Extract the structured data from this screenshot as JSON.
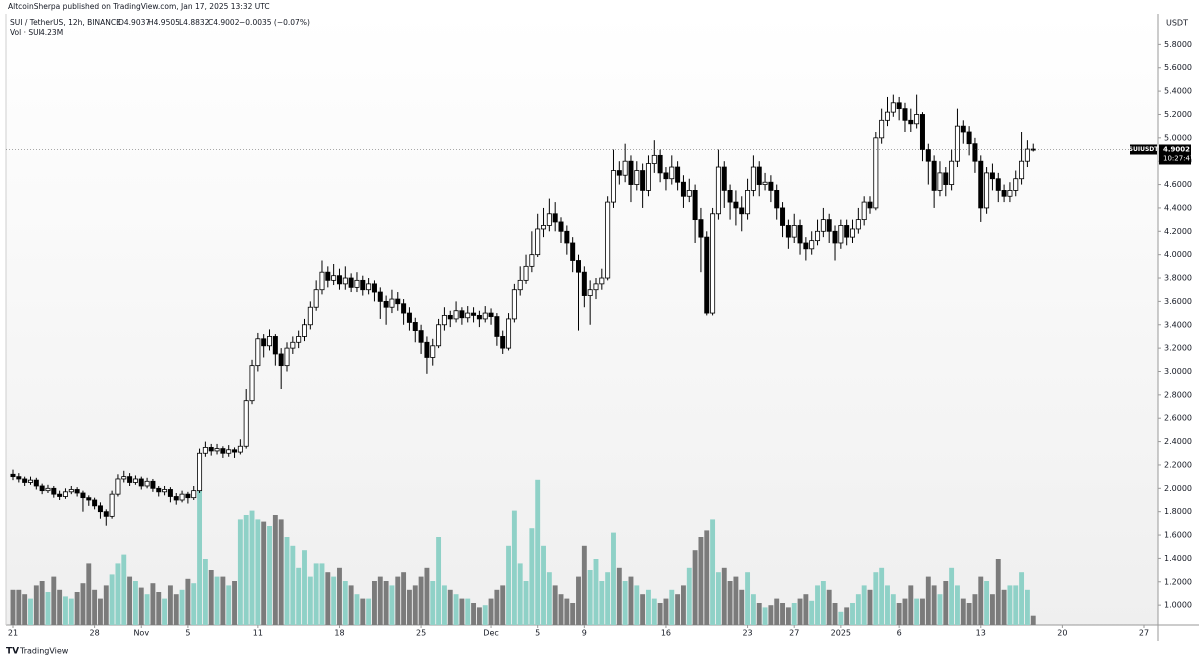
{
  "header": {
    "publisher": "AltcoinSherpa published on TradingView.com, Jan 17, 2025 13:32 UTC",
    "symbol": "SUI / TetherUS, 12h, BINANCE",
    "open": "O4.9037",
    "high": "H4.9505",
    "low": "L4.8832",
    "close": "C4.9002",
    "change": "−0.0035 (−0.07%)",
    "volume_name": "Vol · SUI",
    "volume_value": "4.23M"
  },
  "chart_data": {
    "type": "candlestick",
    "currency": "USDT",
    "xlim": [
      -1.2,
      196.4
    ],
    "xticks": [
      {
        "value": 0,
        "label": "21"
      },
      {
        "value": 14,
        "label": "28"
      },
      {
        "value": 22,
        "label": "Nov"
      },
      {
        "value": 30,
        "label": "5"
      },
      {
        "value": 42,
        "label": "11"
      },
      {
        "value": 56,
        "label": "18"
      },
      {
        "value": 70,
        "label": "25"
      },
      {
        "value": 82,
        "label": "Dec"
      },
      {
        "value": 90,
        "label": "5"
      },
      {
        "value": 98,
        "label": "9"
      },
      {
        "value": 112,
        "label": "16"
      },
      {
        "value": 126,
        "label": "23"
      },
      {
        "value": 134,
        "label": "27"
      },
      {
        "value": 142,
        "label": "2025"
      },
      {
        "value": 152,
        "label": "6"
      },
      {
        "value": 166,
        "label": "13"
      },
      {
        "value": 180,
        "label": "20"
      },
      {
        "value": 194,
        "label": "27"
      }
    ],
    "ylim": [
      0.83,
      6.06
    ],
    "yticks": [
      {
        "value": 1.0,
        "label": "1.0000"
      },
      {
        "value": 1.2,
        "label": "1.2000"
      },
      {
        "value": 1.4,
        "label": "1.4000"
      },
      {
        "value": 1.6,
        "label": "1.6000"
      },
      {
        "value": 1.8,
        "label": "1.8000"
      },
      {
        "value": 2.0,
        "label": "2.0000"
      },
      {
        "value": 2.2,
        "label": "2.2000"
      },
      {
        "value": 2.4,
        "label": "2.4000"
      },
      {
        "value": 2.6,
        "label": "2.6000"
      },
      {
        "value": 2.8,
        "label": "2.8000"
      },
      {
        "value": 3.0,
        "label": "3.0000"
      },
      {
        "value": 3.2,
        "label": "3.2000"
      },
      {
        "value": 3.4,
        "label": "3.4000"
      },
      {
        "value": 3.6,
        "label": "3.6000"
      },
      {
        "value": 3.8,
        "label": "3.8000"
      },
      {
        "value": 4.0,
        "label": "4.0000"
      },
      {
        "value": 4.2,
        "label": "4.2000"
      },
      {
        "value": 4.4,
        "label": "4.4000"
      },
      {
        "value": 4.6,
        "label": "4.6000"
      },
      {
        "value": 4.8,
        "label": "4.8000"
      },
      {
        "value": 5.0,
        "label": "5.0000"
      },
      {
        "value": 5.2,
        "label": "5.2000"
      },
      {
        "value": 5.4,
        "label": "5.4000"
      },
      {
        "value": 5.6,
        "label": "5.6000"
      },
      {
        "value": 5.8,
        "label": "5.8000"
      }
    ],
    "up_color": "#ffffff",
    "down_color": "#000000",
    "open": [
      2.12,
      2.1,
      2.08,
      2.05,
      2.07,
      2.02,
      1.98,
      2.0,
      1.95,
      1.93,
      1.97,
      1.99,
      1.96,
      1.92,
      1.9,
      1.85,
      1.8,
      1.76,
      1.95,
      2.08,
      2.1,
      2.05,
      2.08,
      2.02,
      2.06,
      2.0,
      1.97,
      1.99,
      1.93,
      1.9,
      1.95,
      1.92,
      1.98,
      2.3,
      2.35,
      2.32,
      2.34,
      2.3,
      2.33,
      2.31,
      2.36,
      2.75,
      3.05,
      3.28,
      3.22,
      3.3,
      3.15,
      3.05,
      3.2,
      3.25,
      3.3,
      3.4,
      3.55,
      3.7,
      3.85,
      3.78,
      3.82,
      3.75,
      3.8,
      3.72,
      3.78,
      3.7,
      3.75,
      3.68,
      3.6,
      3.55,
      3.62,
      3.58,
      3.5,
      3.42,
      3.35,
      3.25,
      3.12,
      3.22,
      3.4,
      3.48,
      3.45,
      3.52,
      3.46,
      3.5,
      3.48,
      3.45,
      3.5,
      3.47,
      3.3,
      3.2,
      3.45,
      3.7,
      3.78,
      3.9,
      4.0,
      4.22,
      4.25,
      4.35,
      4.28,
      4.2,
      4.1,
      3.95,
      3.85,
      3.65,
      3.7,
      3.75,
      3.8,
      4.45,
      4.72,
      4.68,
      4.8,
      4.6,
      4.72,
      4.55,
      4.78,
      4.85,
      4.7,
      4.65,
      4.75,
      4.62,
      4.5,
      4.55,
      4.3,
      4.15,
      3.5,
      4.35,
      4.75,
      4.55,
      4.45,
      4.4,
      4.35,
      4.55,
      4.75,
      4.6,
      4.62,
      4.55,
      4.4,
      4.25,
      4.15,
      4.25,
      4.1,
      4.05,
      4.12,
      4.2,
      4.3,
      4.2,
      4.1,
      4.25,
      4.15,
      4.22,
      4.3,
      4.45,
      4.4,
      5.0,
      5.15,
      5.22,
      5.3,
      5.25,
      5.15,
      5.12,
      5.2,
      4.9,
      4.8,
      4.55,
      4.7,
      4.6,
      4.8,
      5.1,
      5.05,
      4.95,
      4.8,
      4.4,
      4.7,
      4.65,
      4.55,
      4.5,
      4.55,
      4.65,
      4.8,
      4.9037
    ],
    "high": [
      2.16,
      2.13,
      2.1,
      2.1,
      2.09,
      2.04,
      2.03,
      2.02,
      1.98,
      2.0,
      2.02,
      2.01,
      1.98,
      1.94,
      1.92,
      1.88,
      1.82,
      1.98,
      2.12,
      2.15,
      2.13,
      2.11,
      2.1,
      2.09,
      2.08,
      2.02,
      2.02,
      2.01,
      1.96,
      1.98,
      1.97,
      2.02,
      2.34,
      2.4,
      2.38,
      2.38,
      2.36,
      2.37,
      2.35,
      2.42,
      2.85,
      3.1,
      3.33,
      3.32,
      3.36,
      3.32,
      3.2,
      3.25,
      3.3,
      3.35,
      3.45,
      3.6,
      3.78,
      3.95,
      3.9,
      3.92,
      3.88,
      3.9,
      3.84,
      3.85,
      3.82,
      3.8,
      3.78,
      3.72,
      3.65,
      3.7,
      3.68,
      3.62,
      3.55,
      3.46,
      3.4,
      3.3,
      3.28,
      3.45,
      3.55,
      3.52,
      3.6,
      3.55,
      3.56,
      3.55,
      3.52,
      3.56,
      3.54,
      3.5,
      3.35,
      3.5,
      3.75,
      3.9,
      4.0,
      4.2,
      4.35,
      4.4,
      4.48,
      4.45,
      4.32,
      4.25,
      4.15,
      4.0,
      3.9,
      3.78,
      3.8,
      3.88,
      4.5,
      4.9,
      4.8,
      4.95,
      4.85,
      4.8,
      4.78,
      4.85,
      4.98,
      4.9,
      4.75,
      4.85,
      4.8,
      4.68,
      4.65,
      4.6,
      4.4,
      4.2,
      4.4,
      4.9,
      4.8,
      4.6,
      4.55,
      4.5,
      4.65,
      4.85,
      4.8,
      4.7,
      4.68,
      4.6,
      4.45,
      4.3,
      4.35,
      4.3,
      4.15,
      4.2,
      4.3,
      4.4,
      4.35,
      4.25,
      4.3,
      4.3,
      4.3,
      4.4,
      4.5,
      4.5,
      5.05,
      5.25,
      5.35,
      5.37,
      5.35,
      5.3,
      5.25,
      5.37,
      5.22,
      4.95,
      4.85,
      4.8,
      4.75,
      4.9,
      5.25,
      5.15,
      5.1,
      5.0,
      4.85,
      4.75,
      4.78,
      4.7,
      4.6,
      4.62,
      4.72,
      5.05,
      4.98,
      4.9505
    ],
    "low": [
      2.07,
      2.05,
      2.02,
      2.03,
      1.99,
      1.95,
      1.96,
      1.92,
      1.9,
      1.91,
      1.95,
      1.93,
      1.8,
      1.85,
      1.82,
      1.74,
      1.68,
      1.74,
      1.93,
      2.05,
      2.02,
      2.03,
      1.99,
      2.0,
      1.97,
      1.93,
      1.94,
      1.88,
      1.86,
      1.88,
      1.87,
      1.9,
      1.96,
      2.27,
      2.28,
      2.29,
      2.26,
      2.27,
      2.26,
      2.29,
      2.34,
      2.72,
      3.0,
      3.12,
      3.18,
      3.05,
      2.85,
      3.0,
      3.15,
      3.2,
      3.26,
      3.36,
      3.52,
      3.66,
      3.72,
      3.74,
      3.7,
      3.7,
      3.68,
      3.68,
      3.65,
      3.66,
      3.6,
      3.45,
      3.4,
      3.5,
      3.52,
      3.4,
      3.35,
      3.25,
      3.15,
      2.98,
      3.05,
      3.2,
      3.35,
      3.38,
      3.42,
      3.4,
      3.42,
      3.42,
      3.38,
      3.42,
      3.4,
      3.22,
      3.15,
      3.18,
      3.42,
      3.65,
      3.75,
      3.85,
      3.98,
      4.15,
      4.2,
      4.2,
      4.1,
      4.0,
      3.85,
      3.35,
      3.55,
      3.4,
      3.62,
      3.7,
      3.78,
      4.4,
      4.6,
      4.62,
      4.45,
      4.55,
      4.4,
      4.5,
      4.7,
      4.62,
      4.55,
      4.6,
      4.55,
      4.4,
      4.45,
      4.1,
      3.85,
      3.48,
      3.48,
      4.3,
      4.4,
      4.3,
      4.25,
      4.2,
      4.3,
      4.5,
      4.5,
      4.55,
      4.45,
      4.3,
      4.15,
      4.05,
      4.1,
      4.0,
      3.95,
      4.0,
      4.08,
      4.15,
      4.1,
      3.95,
      4.05,
      4.08,
      4.1,
      4.18,
      4.25,
      4.35,
      4.38,
      4.95,
      5.1,
      5.18,
      5.15,
      5.05,
      5.05,
      5.08,
      4.8,
      4.6,
      4.4,
      4.5,
      4.5,
      4.55,
      4.75,
      4.95,
      4.85,
      4.7,
      4.28,
      4.35,
      4.55,
      4.45,
      4.45,
      4.45,
      4.5,
      4.6,
      4.75,
      4.8832
    ],
    "close": [
      2.1,
      2.08,
      2.05,
      2.07,
      2.02,
      1.98,
      2.0,
      1.95,
      1.93,
      1.97,
      1.99,
      1.96,
      1.92,
      1.9,
      1.85,
      1.8,
      1.76,
      1.95,
      2.08,
      2.1,
      2.05,
      2.08,
      2.02,
      2.06,
      2.0,
      1.97,
      1.99,
      1.93,
      1.9,
      1.95,
      1.92,
      1.98,
      2.3,
      2.35,
      2.32,
      2.34,
      2.3,
      2.33,
      2.31,
      2.36,
      2.75,
      3.05,
      3.28,
      3.22,
      3.3,
      3.15,
      3.05,
      3.2,
      3.25,
      3.3,
      3.4,
      3.55,
      3.7,
      3.85,
      3.78,
      3.82,
      3.75,
      3.8,
      3.72,
      3.78,
      3.7,
      3.75,
      3.68,
      3.6,
      3.55,
      3.62,
      3.58,
      3.5,
      3.42,
      3.35,
      3.25,
      3.12,
      3.22,
      3.4,
      3.48,
      3.45,
      3.52,
      3.46,
      3.5,
      3.48,
      3.45,
      3.5,
      3.47,
      3.3,
      3.2,
      3.45,
      3.7,
      3.78,
      3.9,
      4.0,
      4.22,
      4.25,
      4.35,
      4.28,
      4.2,
      4.1,
      3.95,
      3.85,
      3.65,
      3.7,
      3.75,
      3.8,
      4.45,
      4.72,
      4.68,
      4.8,
      4.6,
      4.72,
      4.55,
      4.78,
      4.85,
      4.7,
      4.65,
      4.75,
      4.62,
      4.5,
      4.55,
      4.3,
      4.15,
      3.5,
      4.35,
      4.75,
      4.55,
      4.45,
      4.4,
      4.35,
      4.55,
      4.75,
      4.6,
      4.62,
      4.55,
      4.4,
      4.25,
      4.15,
      4.25,
      4.1,
      4.05,
      4.12,
      4.2,
      4.3,
      4.2,
      4.1,
      4.25,
      4.15,
      4.22,
      4.3,
      4.45,
      4.4,
      5.0,
      5.15,
      5.22,
      5.3,
      5.25,
      5.15,
      5.12,
      5.2,
      4.9,
      4.8,
      4.55,
      4.7,
      4.6,
      4.8,
      5.1,
      5.05,
      4.95,
      4.8,
      4.4,
      4.7,
      4.65,
      4.55,
      4.5,
      4.55,
      4.65,
      4.8,
      4.9037,
      4.9002
    ],
    "volume": {
      "up_color": "#8fd1c7",
      "down_color": "#7b7b7b",
      "ylim": [
        0,
        100
      ],
      "values": [
        16,
        16,
        14,
        12,
        18,
        20,
        15,
        22,
        16,
        13,
        12,
        15,
        19,
        28,
        16,
        12,
        18,
        23,
        28,
        32,
        22,
        20,
        17,
        14,
        19,
        15,
        12,
        18,
        14,
        16,
        21,
        19,
        72,
        30,
        25,
        22,
        22,
        18,
        20,
        48,
        50,
        52,
        48,
        47,
        45,
        50,
        48,
        40,
        36,
        26,
        34,
        22,
        28,
        28,
        24,
        22,
        26,
        20,
        18,
        14,
        12,
        12,
        20,
        22,
        20,
        18,
        22,
        24,
        16,
        18,
        22,
        26,
        20,
        40,
        18,
        16,
        14,
        12,
        12,
        10,
        8,
        9,
        12,
        16,
        18,
        36,
        52,
        28,
        20,
        44,
        66,
        36,
        24,
        18,
        14,
        12,
        10,
        22,
        36,
        25,
        30,
        20,
        24,
        42,
        26,
        20,
        22,
        18,
        14,
        16,
        12,
        10,
        12,
        16,
        14,
        18,
        26,
        34,
        40,
        43,
        48,
        24,
        26,
        20,
        22,
        16,
        24,
        14,
        10,
        8,
        9,
        12,
        10,
        8,
        10,
        12,
        14,
        11,
        18,
        20,
        16,
        10,
        6,
        8,
        10,
        14,
        18,
        16,
        24,
        26,
        18,
        14,
        10,
        12,
        18,
        12,
        12,
        22,
        18,
        14,
        20,
        26,
        18,
        12,
        10,
        14,
        22,
        20,
        14,
        30,
        16,
        18,
        18,
        24,
        16,
        4.23
      ]
    },
    "last_price": {
      "symbol": "SUIUSDT",
      "label": "4.9002",
      "countdown": "10:27:47"
    }
  },
  "footer": {
    "brand": "TradingView"
  }
}
